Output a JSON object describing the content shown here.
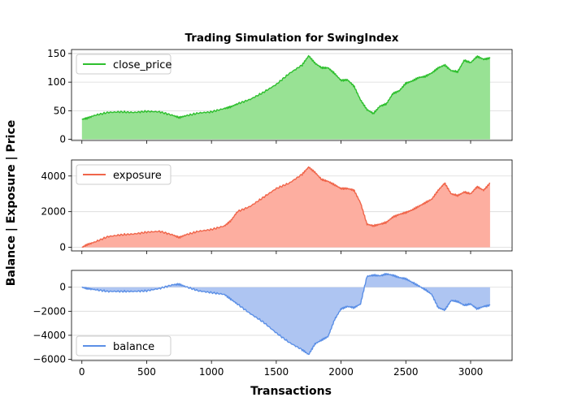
{
  "figure": {
    "title": "Trading Simulation for SwingIndex",
    "ylabel": "Balance | Exposure | Price",
    "xlabel": "Transactions"
  },
  "chart_data": [
    {
      "type": "area",
      "panel": "top",
      "series": [
        {
          "name": "close_price",
          "line_color": "#2ebf2e",
          "fill_color": "#98e294"
        }
      ],
      "x": [
        0,
        40,
        100,
        200,
        300,
        400,
        500,
        600,
        700,
        750,
        800,
        900,
        1000,
        1100,
        1150,
        1200,
        1300,
        1400,
        1500,
        1600,
        1700,
        1750,
        1800,
        1850,
        1900,
        1950,
        2000,
        2050,
        2100,
        2150,
        2200,
        2250,
        2300,
        2350,
        2400,
        2450,
        2500,
        2550,
        2600,
        2650,
        2700,
        2750,
        2800,
        2850,
        2900,
        2950,
        3000,
        3050,
        3100,
        3150
      ],
      "values": [
        35,
        37,
        42,
        47,
        48,
        47,
        49,
        48,
        42,
        38,
        41,
        46,
        48,
        54,
        57,
        62,
        70,
        82,
        96,
        115,
        130,
        146,
        133,
        125,
        125,
        115,
        103,
        104,
        93,
        69,
        52,
        45,
        58,
        62,
        80,
        85,
        98,
        102,
        108,
        110,
        116,
        125,
        130,
        120,
        118,
        138,
        134,
        145,
        140,
        142
      ],
      "xlim": [
        -80,
        3320
      ],
      "ylim": [
        -2,
        157
      ],
      "yticks": [
        0,
        50,
        100,
        150
      ],
      "legend": "top-left"
    },
    {
      "type": "area",
      "panel": "middle",
      "series": [
        {
          "name": "exposure",
          "line_color": "#f0654a",
          "fill_color": "#fdaea0"
        }
      ],
      "x": [
        0,
        40,
        100,
        200,
        300,
        400,
        500,
        600,
        700,
        750,
        800,
        900,
        1000,
        1100,
        1150,
        1200,
        1300,
        1400,
        1500,
        1600,
        1700,
        1750,
        1800,
        1850,
        1900,
        1950,
        2000,
        2050,
        2100,
        2150,
        2200,
        2250,
        2300,
        2350,
        2400,
        2450,
        2500,
        2550,
        2600,
        2650,
        2700,
        2750,
        2800,
        2850,
        2900,
        2950,
        3000,
        3050,
        3100,
        3150
      ],
      "values": [
        0,
        150,
        300,
        600,
        700,
        750,
        850,
        900,
        700,
        550,
        700,
        900,
        1000,
        1200,
        1500,
        2000,
        2300,
        2800,
        3300,
        3600,
        4100,
        4500,
        4200,
        3800,
        3700,
        3500,
        3300,
        3300,
        3200,
        2500,
        1300,
        1200,
        1300,
        1400,
        1700,
        1850,
        1950,
        2100,
        2300,
        2500,
        2700,
        3200,
        3600,
        3000,
        2900,
        3100,
        3000,
        3400,
        3200,
        3600
      ],
      "xlim": [
        -80,
        3320
      ],
      "ylim": [
        -200,
        4900
      ],
      "yticks": [
        0,
        2000,
        4000
      ],
      "legend": "top-left"
    },
    {
      "type": "area",
      "panel": "bottom",
      "series": [
        {
          "name": "balance",
          "line_color": "#5b8fe6",
          "fill_color": "#aec5f2"
        }
      ],
      "x": [
        0,
        40,
        100,
        200,
        300,
        400,
        500,
        600,
        700,
        750,
        800,
        900,
        1000,
        1100,
        1150,
        1200,
        1300,
        1400,
        1500,
        1600,
        1700,
        1750,
        1800,
        1850,
        1900,
        1950,
        2000,
        2050,
        2100,
        2150,
        2200,
        2250,
        2300,
        2350,
        2400,
        2450,
        2500,
        2550,
        2600,
        2650,
        2700,
        2750,
        2800,
        2850,
        2900,
        2950,
        3000,
        3050,
        3100,
        3150
      ],
      "values": [
        0,
        -100,
        -200,
        -350,
        -350,
        -350,
        -300,
        -100,
        200,
        250,
        50,
        -300,
        -450,
        -600,
        -1000,
        -1400,
        -2200,
        -2900,
        -3800,
        -4600,
        -5200,
        -5600,
        -4700,
        -4400,
        -4100,
        -2700,
        -1800,
        -1600,
        -1700,
        -1400,
        900,
        1000,
        950,
        1100,
        1000,
        800,
        700,
        400,
        100,
        -200,
        -600,
        -1700,
        -1900,
        -1100,
        -1200,
        -1500,
        -1400,
        -1800,
        -1600,
        -1500
      ],
      "xlim": [
        -80,
        3320
      ],
      "ylim": [
        -6100,
        1400
      ],
      "yticks": [
        0,
        -2000,
        -4000,
        -6000
      ],
      "legend": "bottom-left"
    }
  ],
  "xticks": [
    0,
    500,
    1000,
    1500,
    2000,
    2500,
    3000
  ]
}
